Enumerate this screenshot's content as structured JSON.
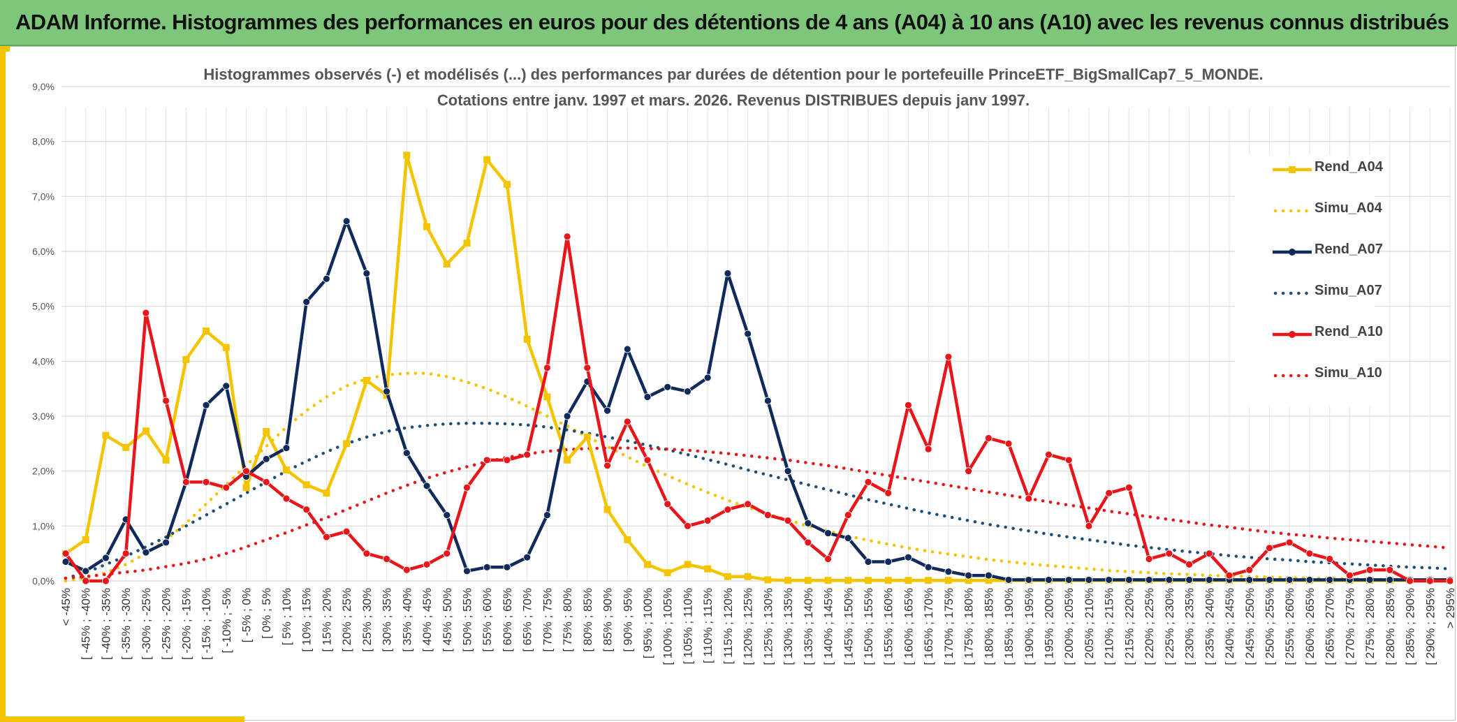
{
  "page": {
    "banner_title": "ADAM Informe. Histogrammes des performances en euros pour des détentions de 4 ans (A04) à 10 ans (A10) avec les revenus connus distribués"
  },
  "colors": {
    "banner": "#7dc67a",
    "accent": "#f5c400",
    "A04": "#f5c400",
    "A07": "#102a5c",
    "A10": "#e8161b",
    "Simu_A07": "#1f4e79"
  },
  "chart_data": {
    "type": "line",
    "title": "Histogrammes observés (-) et modélisés (...) des performances par durées de détention pour le portefeuille PrinceETF_BigSmallCap7_5_MONDE.",
    "subtitle": "Cotations entre janv. 1997 et mars. 2026. Revenus DISTRIBUES depuis janv 1997.",
    "xlabel": "",
    "ylabel": "",
    "ylim": [
      0,
      9
    ],
    "y_ticks": [
      "0,0%",
      "1,0%",
      "2,0%",
      "3,0%",
      "4,0%",
      "5,0%",
      "6,0%",
      "7,0%",
      "8,0%",
      "9,0%"
    ],
    "grid": true,
    "legend_position": "right",
    "categories": [
      "< -45%",
      "[ -45% ; -40%",
      "[ -40% ; -35%",
      "[ -35% ; -30%",
      "[ -30% ; -25%",
      "[ -25% ; -20%",
      "[ -20% ; -15%",
      "[ -15% ; -10%",
      "[ -10% ; -5%",
      "[ -5% ; 0%",
      "[ 0% ; 5%",
      "[ 5% ; 10%",
      "[ 10% ; 15%",
      "[ 15% ; 20%",
      "[ 20% ; 25%",
      "[ 25% ; 30%",
      "[ 30% ; 35%",
      "[ 35% ; 40%",
      "[ 40% ; 45%",
      "[ 45% ; 50%",
      "[ 50% ; 55%",
      "[ 55% ; 60%",
      "[ 60% ; 65%",
      "[ 65% ; 70%",
      "[ 70% ; 75%",
      "[ 75% ; 80%",
      "[ 80% ; 85%",
      "[ 85% ; 90%",
      "[ 90% ; 95%",
      "[ 95% ; 100%",
      "[ 100% ; 105%",
      "[ 105% ; 110%",
      "[ 110% ; 115%",
      "[ 115% ; 120%",
      "[ 120% ; 125%",
      "[ 125% ; 130%",
      "[ 130% ; 135%",
      "[ 135% ; 140%",
      "[ 140% ; 145%",
      "[ 145% ; 150%",
      "[ 150% ; 155%",
      "[ 155% ; 160%",
      "[ 160% ; 165%",
      "[ 165% ; 170%",
      "[ 170% ; 175%",
      "[ 175% ; 180%",
      "[ 180% ; 185%",
      "[ 185% ; 190%",
      "[ 190% ; 195%",
      "[ 195% ; 200%",
      "[ 200% ; 205%",
      "[ 205% ; 210%",
      "[ 210% ; 215%",
      "[ 215% ; 220%",
      "[ 220% ; 225%",
      "[ 225% ; 230%",
      "[ 230% ; 235%",
      "[ 235% ; 240%",
      "[ 240% ; 245%",
      "[ 245% ; 250%",
      "[ 250% ; 255%",
      "[ 255% ; 260%",
      "[ 260% ; 265%",
      "[ 265% ; 270%",
      "[ 270% ; 275%",
      "[ 275% ; 280%",
      "[ 280% ; 285%",
      "[ 285% ; 290%",
      "[ 290% ; 295%",
      "> 295%"
    ],
    "series": [
      {
        "name": "Rend_A04",
        "style": "solid",
        "marker": "square",
        "color": "#f5c400",
        "values": [
          0.5,
          0.75,
          2.65,
          2.43,
          2.73,
          2.2,
          4.03,
          4.55,
          4.25,
          1.7,
          2.72,
          2.02,
          1.75,
          1.6,
          2.5,
          3.65,
          3.38,
          7.75,
          6.45,
          5.77,
          6.15,
          7.67,
          7.22,
          4.4,
          3.35,
          2.2,
          2.62,
          1.3,
          0.75,
          0.3,
          0.15,
          0.3,
          0.22,
          0.08,
          0.08,
          0.02,
          0.01,
          0.01,
          0.01,
          0.01,
          0.01,
          0.01,
          0.01,
          0.01,
          0.01,
          0.01,
          0.01,
          0.01,
          0.01,
          0.01,
          0.01,
          0.01,
          0.01,
          0.01,
          0.01,
          0.01,
          0.01,
          0.01,
          0.01,
          0.01,
          0.01,
          0.01,
          0.01,
          0.01,
          0.01,
          0.01,
          0.01,
          0.01,
          0.01,
          0.01
        ]
      },
      {
        "name": "Simu_A04",
        "style": "dotted",
        "color": "#f5c400",
        "values": [
          0.0,
          0.05,
          0.15,
          0.3,
          0.5,
          0.75,
          1.05,
          1.4,
          1.75,
          2.1,
          2.45,
          2.8,
          3.1,
          3.35,
          3.55,
          3.68,
          3.75,
          3.78,
          3.78,
          3.72,
          3.62,
          3.5,
          3.35,
          3.18,
          3.0,
          2.82,
          2.62,
          2.45,
          2.26,
          2.08,
          1.92,
          1.76,
          1.61,
          1.47,
          1.34,
          1.22,
          1.11,
          1.0,
          0.91,
          0.82,
          0.74,
          0.67,
          0.6,
          0.54,
          0.49,
          0.44,
          0.39,
          0.35,
          0.31,
          0.28,
          0.25,
          0.22,
          0.19,
          0.17,
          0.15,
          0.13,
          0.12,
          0.1,
          0.09,
          0.08,
          0.07,
          0.06,
          0.05,
          0.05,
          0.04,
          0.03,
          0.03,
          0.02,
          0.02,
          0.02
        ]
      },
      {
        "name": "Rend_A07",
        "style": "solid",
        "marker": "circle",
        "color": "#102a5c",
        "values": [
          0.35,
          0.18,
          0.42,
          1.12,
          0.52,
          0.7,
          1.8,
          3.2,
          3.55,
          1.9,
          2.22,
          2.42,
          5.08,
          5.5,
          6.55,
          5.6,
          3.45,
          2.33,
          1.73,
          1.2,
          0.18,
          0.25,
          0.25,
          0.43,
          1.2,
          3.0,
          3.63,
          3.1,
          4.22,
          3.35,
          3.53,
          3.45,
          3.7,
          5.6,
          4.5,
          3.28,
          2.0,
          1.05,
          0.87,
          0.78,
          0.35,
          0.35,
          0.43,
          0.25,
          0.17,
          0.1,
          0.1,
          0.02,
          0.02,
          0.02,
          0.02,
          0.02,
          0.02,
          0.02,
          0.02,
          0.02,
          0.02,
          0.02,
          0.02,
          0.02,
          0.02,
          0.02,
          0.02,
          0.02,
          0.02,
          0.02,
          0.02,
          0.02,
          0.02,
          0.02
        ]
      },
      {
        "name": "Simu_A07",
        "style": "dotted",
        "color": "#1f4e79",
        "values": [
          0.05,
          0.15,
          0.3,
          0.45,
          0.62,
          0.8,
          1.0,
          1.2,
          1.4,
          1.6,
          1.8,
          2.0,
          2.18,
          2.35,
          2.5,
          2.62,
          2.72,
          2.79,
          2.83,
          2.86,
          2.87,
          2.87,
          2.86,
          2.84,
          2.8,
          2.75,
          2.69,
          2.62,
          2.55,
          2.47,
          2.39,
          2.3,
          2.21,
          2.12,
          2.02,
          1.93,
          1.84,
          1.75,
          1.66,
          1.57,
          1.48,
          1.4,
          1.32,
          1.24,
          1.17,
          1.1,
          1.03,
          0.97,
          0.91,
          0.85,
          0.8,
          0.75,
          0.7,
          0.65,
          0.61,
          0.57,
          0.53,
          0.5,
          0.46,
          0.43,
          0.4,
          0.38,
          0.35,
          0.33,
          0.31,
          0.29,
          0.27,
          0.25,
          0.24,
          0.22
        ]
      },
      {
        "name": "Rend_A10",
        "style": "solid",
        "marker": "circle",
        "color": "#e8161b",
        "values": [
          0.5,
          0.0,
          0.0,
          0.5,
          4.88,
          3.28,
          1.8,
          1.8,
          1.7,
          2.0,
          1.8,
          1.5,
          1.3,
          0.8,
          0.9,
          0.5,
          0.4,
          0.2,
          0.3,
          0.5,
          1.7,
          2.2,
          2.2,
          2.3,
          3.88,
          6.27,
          3.88,
          2.1,
          2.9,
          2.2,
          1.4,
          1.0,
          1.1,
          1.3,
          1.4,
          1.2,
          1.1,
          0.7,
          0.4,
          1.2,
          1.8,
          1.6,
          3.2,
          2.4,
          4.08,
          2.0,
          2.6,
          2.5,
          1.5,
          2.3,
          2.2,
          1.0,
          1.6,
          1.7,
          0.4,
          0.5,
          0.3,
          0.5,
          0.1,
          0.2,
          0.6,
          0.7,
          0.5,
          0.4,
          0.1,
          0.2,
          0.2,
          0.0,
          0.0,
          0.0
        ]
      },
      {
        "name": "Simu_A10",
        "style": "dotted",
        "color": "#e8161b",
        "values": [
          0.05,
          0.08,
          0.12,
          0.16,
          0.2,
          0.26,
          0.32,
          0.4,
          0.5,
          0.62,
          0.75,
          0.88,
          1.02,
          1.15,
          1.3,
          1.45,
          1.6,
          1.74,
          1.87,
          1.98,
          2.08,
          2.17,
          2.25,
          2.31,
          2.36,
          2.39,
          2.41,
          2.42,
          2.42,
          2.41,
          2.4,
          2.38,
          2.35,
          2.32,
          2.28,
          2.24,
          2.2,
          2.15,
          2.1,
          2.04,
          1.98,
          1.92,
          1.86,
          1.8,
          1.74,
          1.68,
          1.62,
          1.56,
          1.5,
          1.44,
          1.38,
          1.33,
          1.27,
          1.22,
          1.17,
          1.12,
          1.07,
          1.02,
          0.98,
          0.93,
          0.89,
          0.85,
          0.82,
          0.78,
          0.75,
          0.72,
          0.69,
          0.66,
          0.63,
          0.6
        ]
      }
    ]
  }
}
